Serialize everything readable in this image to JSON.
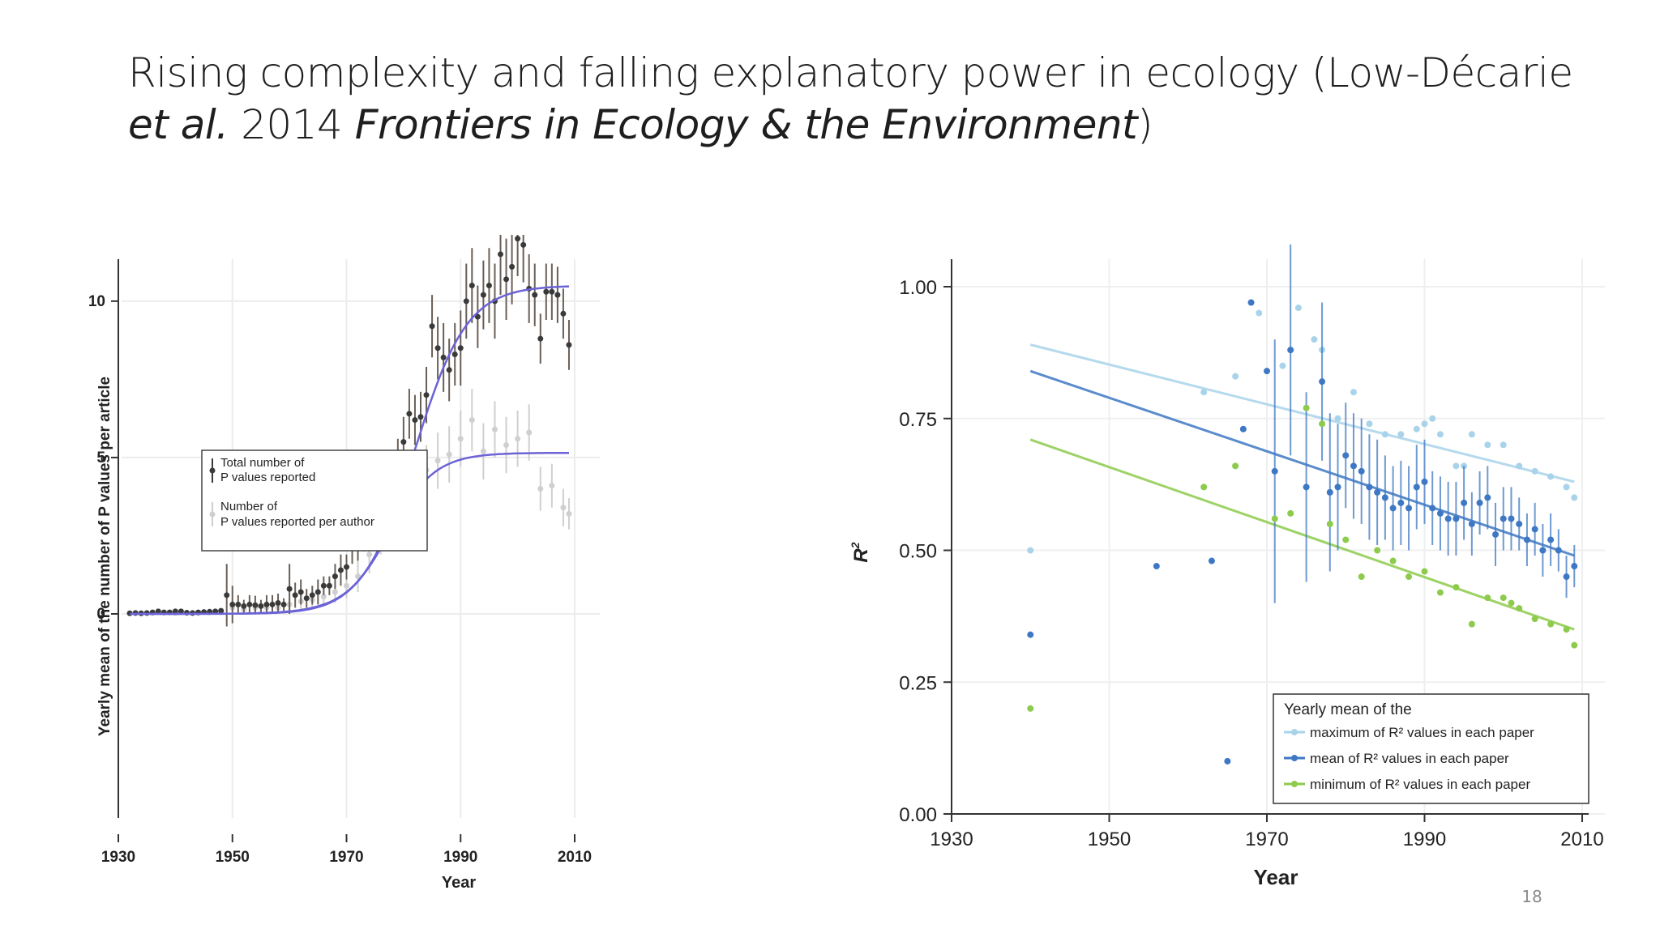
{
  "slide": {
    "title_part1": "Rising complexity and falling explanatory power in ecology (Low-Décarie",
    "title_part2": "et al.",
    "title_part3": " 2014 ",
    "title_part4": "Frontiers in Ecology & the Environment",
    "title_part5": ")",
    "page_number": "18"
  },
  "chart_data": [
    {
      "type": "scatter",
      "xlabel": "Year",
      "ylabel": "Yearly mean of the number of P values per article",
      "xlim": [
        1930,
        2010
      ],
      "ylim": [
        0,
        13
      ],
      "xticks": [
        "1930",
        "1950",
        "1970",
        "1990",
        "2010"
      ],
      "yticks": [
        "0",
        "5",
        "10"
      ],
      "grid": true,
      "legend": {
        "placement": "top-left",
        "entries": [
          "Total number of",
          "P values reported",
          "Number of",
          "P values reported per author"
        ]
      },
      "colors": {
        "total": "#3a3a3a",
        "per_author": "#cfcfcf",
        "fit": "#6b63d6"
      },
      "series": [
        {
          "name": "Total number of P values reported",
          "x": [
            1932,
            1933,
            1934,
            1935,
            1936,
            1937,
            1938,
            1939,
            1940,
            1941,
            1942,
            1943,
            1944,
            1945,
            1946,
            1947,
            1948,
            1949,
            1950,
            1951,
            1952,
            1953,
            1954,
            1955,
            1956,
            1957,
            1958,
            1959,
            1960,
            1961,
            1962,
            1963,
            1964,
            1965,
            1966,
            1967,
            1968,
            1969,
            1970,
            1971,
            1972,
            1973,
            1974,
            1975,
            1976,
            1977,
            1978,
            1979,
            1980,
            1981,
            1982,
            1983,
            1984,
            1985,
            1986,
            1987,
            1988,
            1989,
            1990,
            1991,
            1992,
            1993,
            1994,
            1995,
            1996,
            1997,
            1998,
            1999,
            2000,
            2001,
            2002,
            2003,
            2004,
            2005,
            2006,
            2007,
            2008,
            2009
          ],
          "y": [
            0.02,
            0.03,
            0.02,
            0.03,
            0.05,
            0.08,
            0.05,
            0.05,
            0.08,
            0.08,
            0.04,
            0.03,
            0.05,
            0.06,
            0.07,
            0.08,
            0.1,
            0.6,
            0.3,
            0.3,
            0.25,
            0.3,
            0.28,
            0.25,
            0.3,
            0.3,
            0.35,
            0.3,
            0.8,
            0.6,
            0.7,
            0.5,
            0.6,
            0.7,
            0.9,
            0.9,
            1.2,
            1.4,
            1.5,
            2.1,
            2.2,
            2.5,
            2.7,
            3.0,
            4.2,
            3.5,
            3.7,
            4.9,
            5.5,
            6.4,
            6.2,
            6.3,
            7.0,
            9.2,
            8.5,
            8.2,
            7.8,
            8.3,
            8.5,
            10.0,
            10.5,
            9.5,
            10.2,
            10.5,
            10.0,
            11.5,
            10.7,
            11.1,
            12.0,
            11.8,
            10.4,
            10.2,
            8.8,
            10.3,
            10.3,
            10.2,
            9.6,
            8.6
          ],
          "err": [
            0.02,
            0.02,
            0.02,
            0.02,
            0.03,
            0.04,
            0.03,
            0.03,
            0.04,
            0.04,
            0.03,
            0.02,
            0.03,
            0.04,
            0.05,
            0.05,
            0.06,
            1.0,
            0.6,
            0.3,
            0.2,
            0.3,
            0.3,
            0.2,
            0.3,
            0.3,
            0.3,
            0.2,
            0.8,
            0.4,
            0.4,
            0.3,
            0.3,
            0.4,
            0.3,
            0.3,
            0.4,
            0.5,
            0.4,
            0.5,
            0.5,
            0.5,
            0.5,
            0.5,
            0.7,
            0.5,
            0.6,
            0.7,
            0.8,
            0.8,
            0.8,
            0.8,
            0.9,
            1.0,
            1.0,
            1.1,
            1.0,
            1.0,
            1.2,
            1.2,
            1.2,
            1.0,
            1.1,
            1.2,
            1.2,
            1.3,
            1.3,
            1.2,
            1.2,
            1.2,
            1.1,
            1.0,
            0.8,
            0.9,
            0.9,
            0.9,
            0.8,
            0.8
          ]
        },
        {
          "name": "Number of P values reported per author",
          "x": [
            1932,
            1934,
            1936,
            1938,
            1940,
            1942,
            1944,
            1946,
            1948,
            1950,
            1952,
            1954,
            1956,
            1958,
            1960,
            1962,
            1964,
            1966,
            1968,
            1970,
            1972,
            1974,
            1976,
            1978,
            1980,
            1982,
            1984,
            1986,
            1988,
            1990,
            1992,
            1994,
            1996,
            1998,
            2000,
            2002,
            2004,
            2006,
            2008,
            2009
          ],
          "y": [
            0.02,
            0.02,
            0.03,
            0.04,
            0.03,
            0.03,
            0.03,
            0.05,
            0.05,
            0.2,
            0.15,
            0.2,
            0.2,
            0.2,
            0.3,
            0.4,
            0.45,
            0.55,
            0.7,
            0.9,
            1.2,
            1.9,
            2.6,
            3.3,
            4.0,
            4.4,
            4.6,
            4.9,
            5.1,
            5.6,
            6.2,
            5.2,
            5.9,
            5.4,
            5.6,
            5.8,
            4.0,
            4.1,
            3.4,
            3.2
          ],
          "err": [
            0.01,
            0.01,
            0.02,
            0.02,
            0.02,
            0.02,
            0.02,
            0.03,
            0.03,
            0.2,
            0.1,
            0.15,
            0.15,
            0.15,
            0.2,
            0.25,
            0.25,
            0.3,
            0.35,
            0.4,
            0.5,
            0.6,
            0.7,
            0.7,
            0.8,
            0.8,
            0.8,
            0.9,
            0.9,
            0.9,
            1.0,
            0.9,
            0.9,
            0.9,
            0.9,
            0.9,
            0.7,
            0.7,
            0.6,
            0.5
          ]
        }
      ],
      "fits": [
        {
          "asymptote": 10.5,
          "midpoint": 1982,
          "rate": 0.22
        },
        {
          "asymptote": 5.15,
          "midpoint": 1977.5,
          "rate": 0.25
        }
      ]
    },
    {
      "type": "scatter",
      "xlabel": "Year",
      "ylabel": "R2",
      "xlim": [
        1930,
        2010
      ],
      "ylim": [
        0,
        1
      ],
      "xticks": [
        "1930",
        "1950",
        "1970",
        "1990",
        "2010"
      ],
      "yticks": [
        "0.00",
        "0.25",
        "0.50",
        "0.75",
        "1.00"
      ],
      "grid": true,
      "legend": {
        "placement": "bottom-right",
        "title": "Yearly mean of the",
        "entries": [
          "maximum of R² values in each paper",
          "mean of R² values in each paper",
          "minimum of R² values in each paper"
        ]
      },
      "colors": {
        "max": "#a9d3ea",
        "mean": "#3e78c4",
        "min": "#8ccb4c"
      },
      "series": [
        {
          "name": "maximum of R2 values in each paper",
          "x": [
            1940,
            1962,
            1966,
            1968,
            1969,
            1972,
            1974,
            1976,
            1977,
            1979,
            1981,
            1983,
            1985,
            1987,
            1989,
            1990,
            1991,
            1992,
            1994,
            1995,
            1996,
            1998,
            2000,
            2002,
            2004,
            2006,
            2008,
            2009
          ],
          "y": [
            0.5,
            0.8,
            0.83,
            0.97,
            0.95,
            0.85,
            0.96,
            0.9,
            0.88,
            0.75,
            0.8,
            0.74,
            0.72,
            0.72,
            0.73,
            0.74,
            0.75,
            0.72,
            0.66,
            0.66,
            0.72,
            0.7,
            0.7,
            0.66,
            0.65,
            0.64,
            0.62,
            0.6
          ],
          "fit": [
            [
              1940,
              0.89
            ],
            [
              2009,
              0.63
            ]
          ]
        },
        {
          "name": "mean of R2 values in each paper",
          "x": [
            1940,
            1956,
            1963,
            1965,
            1967,
            1968,
            1970,
            1971,
            1973,
            1975,
            1977,
            1978,
            1979,
            1980,
            1981,
            1982,
            1983,
            1984,
            1985,
            1986,
            1987,
            1988,
            1989,
            1990,
            1991,
            1992,
            1993,
            1994,
            1995,
            1996,
            1997,
            1998,
            1999,
            2000,
            2001,
            2002,
            2003,
            2004,
            2005,
            2006,
            2007,
            2008,
            2009
          ],
          "y": [
            0.34,
            0.47,
            0.48,
            0.1,
            0.73,
            0.97,
            0.84,
            0.65,
            0.88,
            0.62,
            0.82,
            0.61,
            0.62,
            0.68,
            0.66,
            0.65,
            0.62,
            0.61,
            0.6,
            0.58,
            0.59,
            0.58,
            0.62,
            0.63,
            0.58,
            0.57,
            0.56,
            0.56,
            0.59,
            0.55,
            0.59,
            0.6,
            0.53,
            0.56,
            0.56,
            0.55,
            0.52,
            0.54,
            0.5,
            0.52,
            0.5,
            0.45,
            0.47
          ],
          "err": [
            0,
            0,
            0,
            0,
            0,
            0,
            0,
            0.25,
            0.2,
            0.18,
            0.15,
            0.15,
            0.12,
            0.1,
            0.1,
            0.1,
            0.1,
            0.1,
            0.08,
            0.08,
            0.08,
            0.08,
            0.08,
            0.08,
            0.07,
            0.07,
            0.07,
            0.07,
            0.07,
            0.06,
            0.06,
            0.06,
            0.06,
            0.06,
            0.06,
            0.05,
            0.05,
            0.05,
            0.05,
            0.05,
            0.04,
            0.04,
            0.04
          ],
          "fit": [
            [
              1940,
              0.84
            ],
            [
              2009,
              0.49
            ]
          ]
        },
        {
          "name": "minimum of R2 values in each paper",
          "x": [
            1940,
            1962,
            1966,
            1971,
            1973,
            1975,
            1977,
            1978,
            1980,
            1982,
            1984,
            1986,
            1988,
            1990,
            1992,
            1994,
            1996,
            1998,
            2000,
            2001,
            2002,
            2004,
            2006,
            2008,
            2009
          ],
          "y": [
            0.2,
            0.62,
            0.66,
            0.56,
            0.57,
            0.77,
            0.74,
            0.55,
            0.52,
            0.45,
            0.5,
            0.48,
            0.45,
            0.46,
            0.42,
            0.43,
            0.36,
            0.41,
            0.41,
            0.4,
            0.39,
            0.37,
            0.36,
            0.35,
            0.32
          ],
          "fit": [
            [
              1940,
              0.71
            ],
            [
              2009,
              0.35
            ]
          ]
        }
      ]
    }
  ]
}
